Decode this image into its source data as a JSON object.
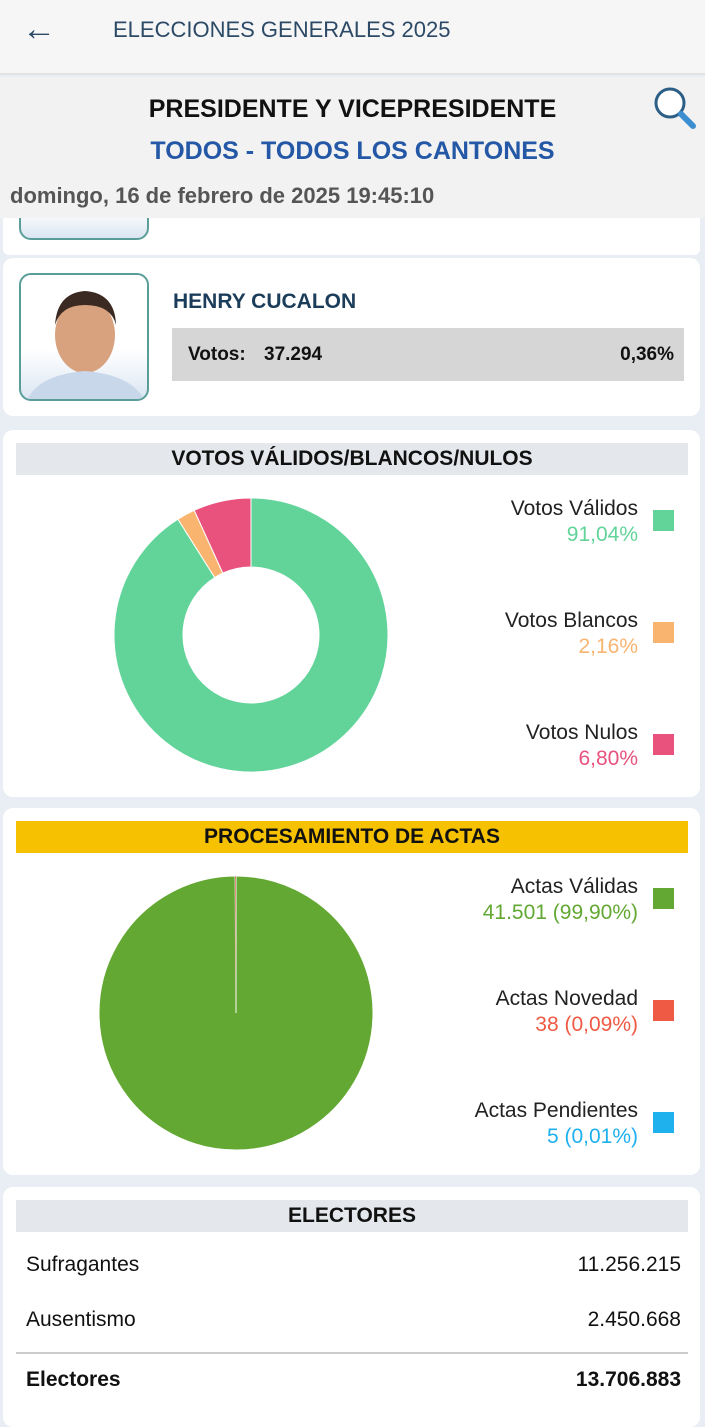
{
  "header": {
    "title": "ELECCIONES GENERALES 2025",
    "back_icon": "arrow-left-icon"
  },
  "page": {
    "title": "PRESIDENTE Y VICEPRESIDENTE",
    "subtitle": "TODOS - TODOS LOS CANTONES",
    "datetime": "domingo, 16 de febrero de 2025 19:45:10",
    "search_icon": "magnifier-icon"
  },
  "candidate": {
    "name": "HENRY CUCALON",
    "votes_label": "Votos:",
    "votes": "37.294",
    "percent": "0,36%"
  },
  "votes_chart": {
    "title": "VOTOS VÁLIDOS/BLANCOS/NULOS",
    "type": "donut",
    "series": [
      {
        "name": "Votos Válidos",
        "label": "91,04%",
        "value": 91.04,
        "color": "#62d49a"
      },
      {
        "name": "Votos Blancos",
        "label": "2,16%",
        "value": 2.16,
        "color": "#f9b570"
      },
      {
        "name": "Votos Nulos",
        "label": "6,80%",
        "value": 6.8,
        "color": "#e8527d"
      }
    ]
  },
  "actas_chart": {
    "title": "PROCESAMIENTO DE ACTAS",
    "type": "pie",
    "title_bg": "#f5c100",
    "series": [
      {
        "name": "Actas Válidas",
        "label": "41.501 (99,90%)",
        "value": 99.9,
        "color": "#62a832"
      },
      {
        "name": "Actas Novedad",
        "label": "38 (0,09%)",
        "value": 0.09,
        "color": "#ef5a45"
      },
      {
        "name": "Actas Pendientes",
        "label": "5 (0,01%)",
        "value": 0.01,
        "color": "#1fb0ee"
      }
    ]
  },
  "chart_data": [
    {
      "type": "pie",
      "title": "VOTOS VÁLIDOS/BLANCOS/NULOS",
      "categories": [
        "Votos Válidos",
        "Votos Blancos",
        "Votos Nulos"
      ],
      "values": [
        91.04,
        2.16,
        6.8
      ]
    },
    {
      "type": "pie",
      "title": "PROCESAMIENTO DE ACTAS",
      "categories": [
        "Actas Válidas",
        "Actas Novedad",
        "Actas Pendientes"
      ],
      "values": [
        41501,
        38,
        5
      ]
    }
  ],
  "electores": {
    "title": "ELECTORES",
    "rows": [
      {
        "label": "Sufragantes",
        "value": "11.256.215"
      },
      {
        "label": "Ausentismo",
        "value": "2.450.668"
      }
    ],
    "total": {
      "label": "Electores",
      "value": "13.706.883"
    }
  }
}
